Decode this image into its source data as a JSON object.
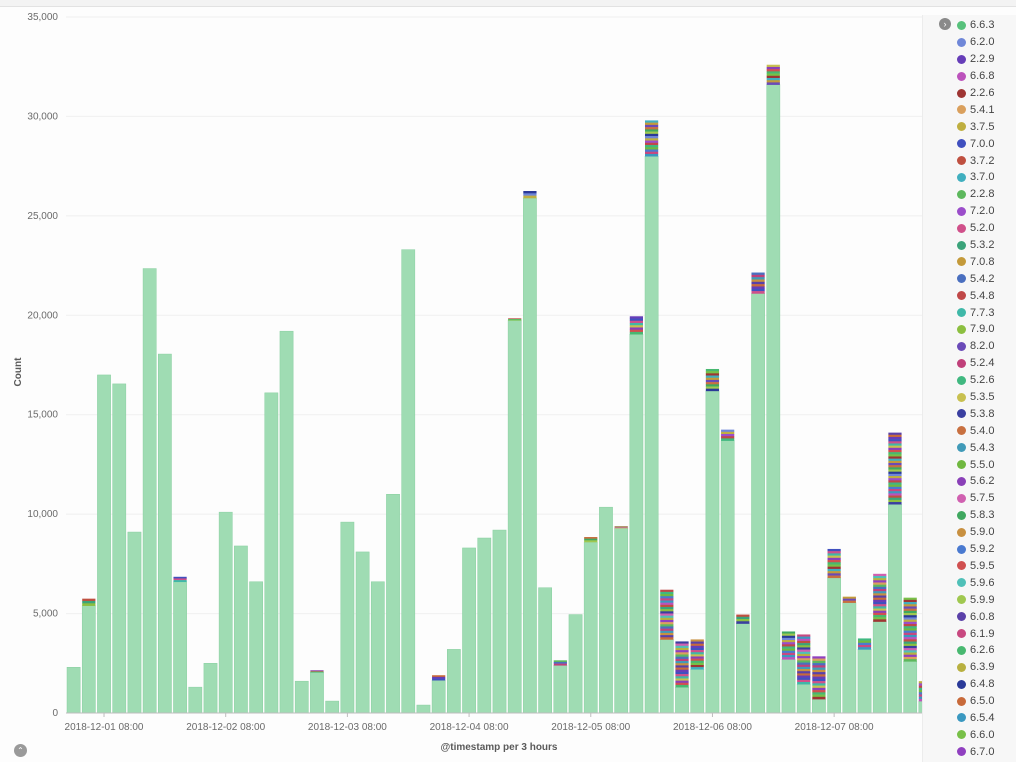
{
  "chart_data": {
    "type": "bar",
    "stacked": true,
    "ylabel": "Count",
    "xlabel": "@timestamp per 3 hours",
    "ylim": [
      0,
      35000
    ],
    "yticks": [
      0,
      5000,
      10000,
      15000,
      20000,
      25000,
      30000,
      35000
    ],
    "ytick_labels": [
      "0",
      "5,000",
      "10,000",
      "15,000",
      "20,000",
      "25,000",
      "30,000",
      "35,000"
    ],
    "xtick_labels": [
      {
        "label": "2018-12-01 08:00",
        "bin": 2
      },
      {
        "label": "2018-12-02 08:00",
        "bin": 10
      },
      {
        "label": "2018-12-03 08:00",
        "bin": 18
      },
      {
        "label": "2018-12-04 08:00",
        "bin": 26
      },
      {
        "label": "2018-12-05 08:00",
        "bin": 34
      },
      {
        "label": "2018-12-06 08:00",
        "bin": 42
      },
      {
        "label": "2018-12-07 08:00",
        "bin": 50
      }
    ],
    "main_series": "6.6.3",
    "main_color": "#9fdcb3",
    "bars": [
      {
        "main": 2300,
        "other": 0
      },
      {
        "main": 5400,
        "other": 350
      },
      {
        "main": 17000,
        "other": 0
      },
      {
        "main": 16550,
        "other": 0
      },
      {
        "main": 9100,
        "other": 0
      },
      {
        "main": 22350,
        "other": 0
      },
      {
        "main": 18050,
        "other": 0
      },
      {
        "main": 6600,
        "other": 250
      },
      {
        "main": 1300,
        "other": 0
      },
      {
        "main": 2500,
        "other": 0
      },
      {
        "main": 10100,
        "other": 0
      },
      {
        "main": 8400,
        "other": 0
      },
      {
        "main": 6600,
        "other": 0
      },
      {
        "main": 16100,
        "other": 0
      },
      {
        "main": 19200,
        "other": 0
      },
      {
        "main": 1600,
        "other": 0
      },
      {
        "main": 2050,
        "other": 100
      },
      {
        "main": 600,
        "other": 0
      },
      {
        "main": 9600,
        "other": 0
      },
      {
        "main": 8100,
        "other": 0
      },
      {
        "main": 6600,
        "other": 0
      },
      {
        "main": 11000,
        "other": 0
      },
      {
        "main": 23300,
        "other": 0
      },
      {
        "main": 400,
        "other": 0
      },
      {
        "main": 1650,
        "other": 250
      },
      {
        "main": 3200,
        "other": 0
      },
      {
        "main": 8300,
        "other": 0
      },
      {
        "main": 8800,
        "other": 0
      },
      {
        "main": 9200,
        "other": 0
      },
      {
        "main": 19750,
        "other": 100
      },
      {
        "main": 25900,
        "other": 350
      },
      {
        "main": 6300,
        "other": 0
      },
      {
        "main": 2400,
        "other": 250
      },
      {
        "main": 4950,
        "other": 0
      },
      {
        "main": 8600,
        "other": 250
      },
      {
        "main": 10350,
        "other": 0
      },
      {
        "main": 9300,
        "other": 100
      },
      {
        "main": 19050,
        "other": 900
      },
      {
        "main": 28000,
        "other": 1800
      },
      {
        "main": 3700,
        "other": 2500
      },
      {
        "main": 1300,
        "other": 2300
      },
      {
        "main": 2200,
        "other": 1500
      },
      {
        "main": 16200,
        "other": 1100
      },
      {
        "main": 13700,
        "other": 550
      },
      {
        "main": 4500,
        "other": 450
      },
      {
        "main": 21100,
        "other": 1050
      },
      {
        "main": 31600,
        "other": 1000
      },
      {
        "main": 2700,
        "other": 1400
      },
      {
        "main": 1450,
        "other": 2500
      },
      {
        "main": 700,
        "other": 2150
      },
      {
        "main": 6800,
        "other": 1450
      },
      {
        "main": 5550,
        "other": 300
      },
      {
        "main": 3200,
        "other": 550
      },
      {
        "main": 4600,
        "other": 2400
      },
      {
        "main": 10500,
        "other": 3600
      },
      {
        "main": 2600,
        "other": 3200
      },
      {
        "main": 600,
        "other": 1000
      }
    ],
    "legend": [
      {
        "name": "6.6.3",
        "color": "#57c17b"
      },
      {
        "name": "6.2.0",
        "color": "#6f87d8"
      },
      {
        "name": "2.2.9",
        "color": "#663db8"
      },
      {
        "name": "6.6.8",
        "color": "#bc52bc"
      },
      {
        "name": "2.2.6",
        "color": "#9e3533"
      },
      {
        "name": "5.4.1",
        "color": "#daa05d"
      },
      {
        "name": "3.7.5",
        "color": "#bfaf40"
      },
      {
        "name": "7.0.0",
        "color": "#4050bf"
      },
      {
        "name": "3.7.2",
        "color": "#bf5040"
      },
      {
        "name": "3.7.0",
        "color": "#40afbf"
      },
      {
        "name": "2.2.8",
        "color": "#5db85d"
      },
      {
        "name": "7.2.0",
        "color": "#9b4dca"
      },
      {
        "name": "5.2.0",
        "color": "#d0508a"
      },
      {
        "name": "5.3.2",
        "color": "#3ba37a"
      },
      {
        "name": "7.0.8",
        "color": "#c49a3a"
      },
      {
        "name": "5.4.2",
        "color": "#4a6fbf"
      },
      {
        "name": "5.4.8",
        "color": "#c04848"
      },
      {
        "name": "7.7.3",
        "color": "#3fb8a8"
      },
      {
        "name": "7.9.0",
        "color": "#8cbf40"
      },
      {
        "name": "8.2.0",
        "color": "#6a4ab8"
      },
      {
        "name": "5.2.4",
        "color": "#c0407a"
      },
      {
        "name": "5.2.6",
        "color": "#40b880"
      },
      {
        "name": "5.3.5",
        "color": "#c8c050"
      },
      {
        "name": "5.3.8",
        "color": "#3a3fa0"
      },
      {
        "name": "5.4.0",
        "color": "#c87040"
      },
      {
        "name": "5.4.3",
        "color": "#409ab8"
      },
      {
        "name": "5.5.0",
        "color": "#70b840"
      },
      {
        "name": "5.6.2",
        "color": "#8a40b8"
      },
      {
        "name": "5.7.5",
        "color": "#d060b0"
      },
      {
        "name": "5.8.3",
        "color": "#40a860"
      },
      {
        "name": "5.9.0",
        "color": "#c89040"
      },
      {
        "name": "5.9.2",
        "color": "#4a7ad0"
      },
      {
        "name": "5.9.5",
        "color": "#d05050"
      },
      {
        "name": "5.9.6",
        "color": "#50c0b8"
      },
      {
        "name": "5.9.9",
        "color": "#a0c850"
      },
      {
        "name": "6.0.8",
        "color": "#5a40a8"
      },
      {
        "name": "6.1.9",
        "color": "#c84880"
      },
      {
        "name": "6.2.6",
        "color": "#48b870"
      },
      {
        "name": "6.3.9",
        "color": "#b8b040"
      },
      {
        "name": "6.4.8",
        "color": "#2a3a98"
      },
      {
        "name": "6.5.0",
        "color": "#c86a3a"
      },
      {
        "name": "6.5.4",
        "color": "#3a98c0"
      },
      {
        "name": "6.6.0",
        "color": "#78c048"
      },
      {
        "name": "6.7.0",
        "color": "#9040c0"
      }
    ]
  },
  "ui": {
    "legend_toggle_icon": "chevron-right",
    "collapse_icon": "chevron-up",
    "legend_toggle_glyph": "›",
    "collapse_glyph": "⌃"
  }
}
